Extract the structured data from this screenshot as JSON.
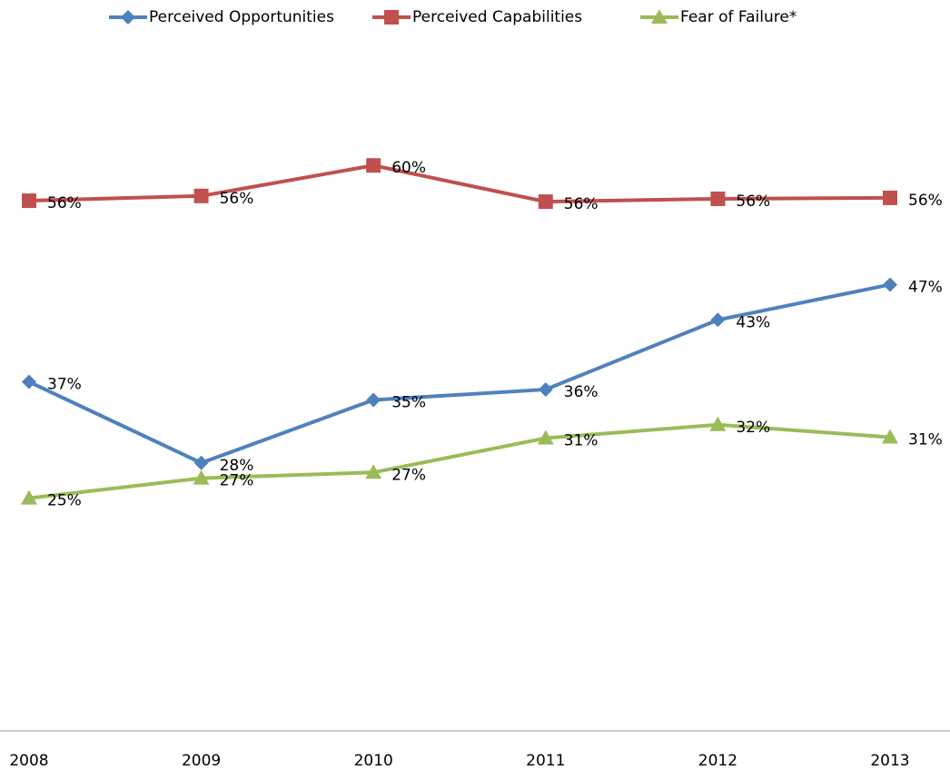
{
  "chart_data": {
    "type": "line",
    "categories": [
      "2008",
      "2009",
      "2010",
      "2011",
      "2012",
      "2013"
    ],
    "ylim": [
      0,
      62
    ],
    "legend": "top",
    "series": [
      {
        "name": "Perceived Opportunities",
        "color": "#4f81bd",
        "marker": "diamond",
        "values": [
          36.9,
          28.4,
          35.0,
          36.1,
          43.4,
          47.1
        ],
        "value_labels": [
          "37%",
          "28%",
          "35%",
          "36%",
          "43%",
          "47%"
        ]
      },
      {
        "name": "Perceived Capabilities",
        "color": "#c0504d",
        "marker": "square",
        "values": [
          55.9,
          56.4,
          59.6,
          55.8,
          56.1,
          56.2
        ],
        "value_labels": [
          "56%",
          "56%",
          "60%",
          "56%",
          "56%",
          "56%"
        ]
      },
      {
        "name": "Fear of Failure*",
        "color": "#9bbb59",
        "marker": "triangle",
        "values": [
          24.7,
          26.8,
          27.4,
          31.0,
          32.4,
          31.1
        ],
        "value_labels": [
          "25%",
          "27%",
          "27%",
          "31%",
          "32%",
          "31%"
        ]
      }
    ]
  }
}
